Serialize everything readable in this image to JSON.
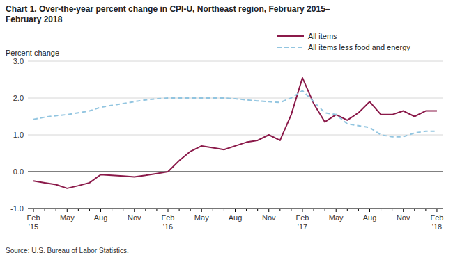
{
  "chart_data": {
    "type": "line",
    "title": [
      "Chart 1. Over-the-year percent change in CPI-U, Northeast region, February 2015–",
      "February 2018"
    ],
    "y_label": "Percent change",
    "source": "Source: U.S. Bureau of Labor Statistics.",
    "categories": [
      "Feb\n'15",
      null,
      null,
      "May",
      null,
      null,
      "Aug",
      null,
      null,
      "Nov",
      null,
      null,
      "Feb\n'16",
      null,
      null,
      "May",
      null,
      null,
      "Aug",
      null,
      null,
      "Nov",
      null,
      null,
      "Feb\n'17",
      null,
      null,
      "May",
      null,
      null,
      "Aug",
      null,
      null,
      "Nov",
      null,
      null,
      "Feb\n'18"
    ],
    "series": [
      {
        "name": "All items",
        "color": "#8B1A4A",
        "line_style": "solid",
        "values": [
          -0.25,
          -0.3,
          -0.35,
          -0.45,
          -0.38,
          -0.3,
          -0.08,
          -0.1,
          -0.12,
          -0.14,
          -0.1,
          -0.05,
          0.0,
          0.3,
          0.55,
          0.7,
          0.65,
          0.6,
          0.7,
          0.8,
          0.85,
          1.0,
          0.85,
          1.55,
          2.55,
          1.85,
          1.35,
          1.55,
          1.4,
          1.6,
          1.9,
          1.55,
          1.55,
          1.65,
          1.5,
          1.65,
          1.65
        ]
      },
      {
        "name": "All items less food and energy",
        "color": "#92C5E0",
        "line_style": "dashed",
        "values": [
          1.42,
          1.48,
          1.52,
          1.55,
          1.6,
          1.65,
          1.75,
          1.8,
          1.85,
          1.9,
          1.95,
          1.98,
          2.0,
          2.0,
          2.0,
          2.0,
          2.0,
          2.0,
          1.98,
          1.95,
          1.92,
          1.9,
          1.88,
          2.0,
          2.2,
          1.9,
          1.6,
          1.55,
          1.3,
          1.25,
          1.2,
          1.0,
          0.95,
          0.95,
          1.05,
          1.1,
          1.1
        ]
      }
    ],
    "ylim": [
      -1.0,
      3.0
    ],
    "yticks": [
      {
        "value": -1.0,
        "label": "-1.0"
      },
      {
        "value": 0.0,
        "label": "0.0"
      },
      {
        "value": 1.0,
        "label": "1.0"
      },
      {
        "value": 2.0,
        "label": "2.0"
      },
      {
        "value": 3.0,
        "label": "3.0"
      }
    ],
    "grid": true,
    "legend": "top"
  }
}
